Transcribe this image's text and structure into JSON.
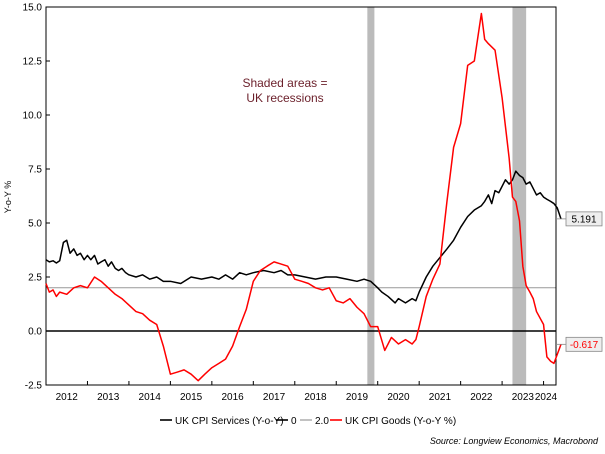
{
  "chart_data": {
    "type": "line",
    "title": "",
    "ylabel": "Y-o-Y %",
    "xlabel": "",
    "ylim": [
      -2.5,
      15.0
    ],
    "yticks": [
      "-2.5",
      "0.0",
      "2.5",
      "5.0",
      "7.5",
      "10.0",
      "12.5",
      "15.0"
    ],
    "xticks": [
      "2012",
      "2013",
      "2014",
      "2015",
      "2016",
      "2017",
      "2018",
      "2019",
      "2020",
      "2021",
      "2022",
      "2023",
      "2024"
    ],
    "xlim": [
      2012.0,
      2024.3
    ],
    "grid": false,
    "legend_placement": "bottom",
    "annotation": {
      "lines": [
        "Shaded areas =",
        "UK recessions"
      ]
    },
    "recessions": [
      [
        2019.75,
        2019.92
      ],
      [
        2023.25,
        2023.58
      ]
    ],
    "reference_lines": [
      {
        "name": "0",
        "value": 0.0,
        "color": "#000000"
      },
      {
        "name": "2.0",
        "value": 2.0,
        "color": "#999999"
      }
    ],
    "series": [
      {
        "name": "UK CPI Services (Y-o-Y)",
        "color": "#000000",
        "end_label": "5.191",
        "points": [
          [
            2012.0,
            3.3
          ],
          [
            2012.08,
            3.2
          ],
          [
            2012.17,
            3.25
          ],
          [
            2012.25,
            3.15
          ],
          [
            2012.33,
            3.25
          ],
          [
            2012.42,
            4.1
          ],
          [
            2012.5,
            4.2
          ],
          [
            2012.58,
            3.6
          ],
          [
            2012.67,
            3.8
          ],
          [
            2012.75,
            3.5
          ],
          [
            2012.83,
            3.6
          ],
          [
            2012.92,
            3.3
          ],
          [
            2013.0,
            3.5
          ],
          [
            2013.08,
            3.3
          ],
          [
            2013.17,
            3.5
          ],
          [
            2013.25,
            3.1
          ],
          [
            2013.33,
            3.2
          ],
          [
            2013.42,
            3.3
          ],
          [
            2013.5,
            3.0
          ],
          [
            2013.58,
            3.2
          ],
          [
            2013.67,
            2.9
          ],
          [
            2013.75,
            2.8
          ],
          [
            2013.83,
            2.9
          ],
          [
            2013.92,
            2.7
          ],
          [
            2014.0,
            2.6
          ],
          [
            2014.17,
            2.5
          ],
          [
            2014.33,
            2.6
          ],
          [
            2014.5,
            2.4
          ],
          [
            2014.67,
            2.5
          ],
          [
            2014.83,
            2.3
          ],
          [
            2015.0,
            2.3
          ],
          [
            2015.25,
            2.2
          ],
          [
            2015.5,
            2.5
          ],
          [
            2015.75,
            2.4
          ],
          [
            2016.0,
            2.5
          ],
          [
            2016.17,
            2.4
          ],
          [
            2016.33,
            2.6
          ],
          [
            2016.5,
            2.4
          ],
          [
            2016.67,
            2.7
          ],
          [
            2016.83,
            2.6
          ],
          [
            2017.0,
            2.7
          ],
          [
            2017.25,
            2.8
          ],
          [
            2017.5,
            2.7
          ],
          [
            2017.67,
            2.8
          ],
          [
            2017.83,
            2.6
          ],
          [
            2018.0,
            2.6
          ],
          [
            2018.25,
            2.5
          ],
          [
            2018.5,
            2.4
          ],
          [
            2018.75,
            2.5
          ],
          [
            2019.0,
            2.5
          ],
          [
            2019.25,
            2.4
          ],
          [
            2019.5,
            2.3
          ],
          [
            2019.67,
            2.4
          ],
          [
            2019.83,
            2.3
          ],
          [
            2020.0,
            2.0
          ],
          [
            2020.1,
            1.8
          ],
          [
            2020.25,
            1.6
          ],
          [
            2020.42,
            1.3
          ],
          [
            2020.5,
            1.5
          ],
          [
            2020.67,
            1.3
          ],
          [
            2020.83,
            1.5
          ],
          [
            2020.92,
            1.4
          ],
          [
            2021.0,
            1.8
          ],
          [
            2021.17,
            2.5
          ],
          [
            2021.33,
            3.0
          ],
          [
            2021.5,
            3.4
          ],
          [
            2021.67,
            3.8
          ],
          [
            2021.83,
            4.2
          ],
          [
            2022.0,
            4.8
          ],
          [
            2022.17,
            5.3
          ],
          [
            2022.33,
            5.6
          ],
          [
            2022.5,
            5.8
          ],
          [
            2022.58,
            6.0
          ],
          [
            2022.67,
            6.3
          ],
          [
            2022.75,
            5.9
          ],
          [
            2022.83,
            6.5
          ],
          [
            2022.92,
            6.4
          ],
          [
            2023.0,
            6.7
          ],
          [
            2023.08,
            7.0
          ],
          [
            2023.17,
            6.8
          ],
          [
            2023.25,
            7.0
          ],
          [
            2023.33,
            7.4
          ],
          [
            2023.42,
            7.2
          ],
          [
            2023.5,
            7.1
          ],
          [
            2023.58,
            6.8
          ],
          [
            2023.67,
            6.9
          ],
          [
            2023.75,
            6.6
          ],
          [
            2023.83,
            6.3
          ],
          [
            2023.92,
            6.4
          ],
          [
            2024.0,
            6.2
          ],
          [
            2024.08,
            6.1
          ],
          [
            2024.17,
            6.0
          ],
          [
            2024.25,
            5.9
          ],
          [
            2024.33,
            5.7
          ],
          [
            2024.42,
            5.191
          ]
        ]
      },
      {
        "name": "UK CPI Goods (Y-o-Y %)",
        "color": "#ff0000",
        "end_label": "-0.617",
        "points": [
          [
            2012.0,
            2.2
          ],
          [
            2012.08,
            1.8
          ],
          [
            2012.17,
            1.9
          ],
          [
            2012.25,
            1.6
          ],
          [
            2012.33,
            1.8
          ],
          [
            2012.5,
            1.7
          ],
          [
            2012.67,
            2.0
          ],
          [
            2012.83,
            2.1
          ],
          [
            2013.0,
            2.0
          ],
          [
            2013.17,
            2.5
          ],
          [
            2013.33,
            2.3
          ],
          [
            2013.5,
            2.0
          ],
          [
            2013.67,
            1.7
          ],
          [
            2013.83,
            1.5
          ],
          [
            2014.0,
            1.2
          ],
          [
            2014.17,
            0.9
          ],
          [
            2014.33,
            0.8
          ],
          [
            2014.5,
            0.5
          ],
          [
            2014.67,
            0.3
          ],
          [
            2014.83,
            -0.7
          ],
          [
            2015.0,
            -2.0
          ],
          [
            2015.17,
            -1.9
          ],
          [
            2015.33,
            -1.8
          ],
          [
            2015.5,
            -2.0
          ],
          [
            2015.67,
            -2.3
          ],
          [
            2015.83,
            -2.0
          ],
          [
            2016.0,
            -1.7
          ],
          [
            2016.17,
            -1.5
          ],
          [
            2016.33,
            -1.3
          ],
          [
            2016.5,
            -0.7
          ],
          [
            2016.67,
            0.2
          ],
          [
            2016.83,
            1.0
          ],
          [
            2017.0,
            2.3
          ],
          [
            2017.17,
            2.8
          ],
          [
            2017.33,
            3.0
          ],
          [
            2017.5,
            3.2
          ],
          [
            2017.67,
            3.1
          ],
          [
            2017.83,
            3.0
          ],
          [
            2018.0,
            2.4
          ],
          [
            2018.17,
            2.3
          ],
          [
            2018.33,
            2.2
          ],
          [
            2018.5,
            2.0
          ],
          [
            2018.67,
            1.9
          ],
          [
            2018.83,
            2.0
          ],
          [
            2019.0,
            1.4
          ],
          [
            2019.17,
            1.3
          ],
          [
            2019.33,
            1.5
          ],
          [
            2019.5,
            1.1
          ],
          [
            2019.67,
            0.8
          ],
          [
            2019.83,
            0.2
          ],
          [
            2020.0,
            0.2
          ],
          [
            2020.17,
            -0.9
          ],
          [
            2020.33,
            -0.3
          ],
          [
            2020.5,
            -0.6
          ],
          [
            2020.67,
            -0.4
          ],
          [
            2020.83,
            -0.6
          ],
          [
            2020.92,
            -0.4
          ],
          [
            2021.0,
            0.2
          ],
          [
            2021.17,
            1.6
          ],
          [
            2021.33,
            2.4
          ],
          [
            2021.5,
            3.1
          ],
          [
            2021.67,
            6.0
          ],
          [
            2021.83,
            8.5
          ],
          [
            2022.0,
            9.6
          ],
          [
            2022.17,
            12.3
          ],
          [
            2022.33,
            12.5
          ],
          [
            2022.5,
            14.7
          ],
          [
            2022.58,
            13.5
          ],
          [
            2022.67,
            13.3
          ],
          [
            2022.83,
            13.0
          ],
          [
            2023.0,
            10.8
          ],
          [
            2023.17,
            8.0
          ],
          [
            2023.25,
            6.2
          ],
          [
            2023.33,
            6.0
          ],
          [
            2023.42,
            5.1
          ],
          [
            2023.5,
            3.0
          ],
          [
            2023.58,
            2.1
          ],
          [
            2023.67,
            1.8
          ],
          [
            2023.75,
            1.5
          ],
          [
            2023.83,
            0.9
          ],
          [
            2024.0,
            0.3
          ],
          [
            2024.08,
            -1.2
          ],
          [
            2024.17,
            -1.4
          ],
          [
            2024.25,
            -1.5
          ],
          [
            2024.42,
            -0.617
          ]
        ]
      }
    ]
  },
  "legend": {
    "items": [
      {
        "label": "UK CPI Services (Y-o-Y)",
        "color": "#000000"
      },
      {
        "label": "0",
        "color": "#000000"
      },
      {
        "label": "2.0",
        "color": "#999999"
      },
      {
        "label": "UK CPI Goods (Y-o-Y %)",
        "color": "#ff0000"
      }
    ]
  },
  "source": "Source: Longview Economics, Macrobond",
  "colors": {
    "recession_fill": "#bbbbbb",
    "axis": "#000000",
    "annotation": "#6b1f2a",
    "tag_box_fill": "#eeeeee",
    "tag_box_stroke": "#888888"
  }
}
